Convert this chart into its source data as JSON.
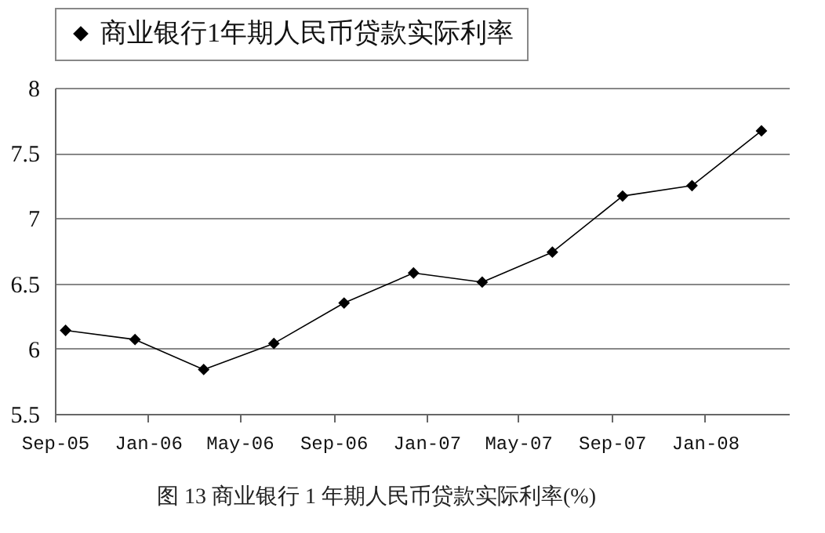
{
  "chart_data": {
    "type": "line",
    "x": [
      "2005-09-15",
      "2005-12-15",
      "2006-03-15",
      "2006-06-15",
      "2006-09-15",
      "2006-12-15",
      "2007-03-15",
      "2007-06-15",
      "2007-09-15",
      "2007-12-15",
      "2008-03-15"
    ],
    "series": [
      {
        "name": "商业银行1年期人民币贷款实际利率",
        "color": "#000000",
        "values": [
          6.14,
          6.07,
          5.84,
          6.04,
          6.35,
          6.58,
          6.51,
          6.74,
          7.17,
          7.25,
          7.67
        ]
      }
    ],
    "xlim": [
      "2005-09-01",
      "2008-04-20"
    ],
    "xticks": [
      {
        "value": "2005-09-01",
        "label": "Sep-05"
      },
      {
        "value": "2006-01-01",
        "label": "Jan-06"
      },
      {
        "value": "2006-05-01",
        "label": "May-06"
      },
      {
        "value": "2006-09-01",
        "label": "Sep-06"
      },
      {
        "value": "2007-01-01",
        "label": "Jan-07"
      },
      {
        "value": "2007-05-01",
        "label": "May-07"
      },
      {
        "value": "2007-09-01",
        "label": "Sep-07"
      },
      {
        "value": "2008-01-01",
        "label": "Jan-08"
      }
    ],
    "ylim": [
      5.5,
      8
    ],
    "yticks": [
      5.5,
      6,
      6.5,
      7,
      7.5,
      8
    ],
    "grid": "y",
    "legend": "top",
    "marker": "diamond",
    "line_style": "solid",
    "annotations": [
      "图 13  商业银行 1 年期人民币贷款实际利率(%)"
    ]
  }
}
